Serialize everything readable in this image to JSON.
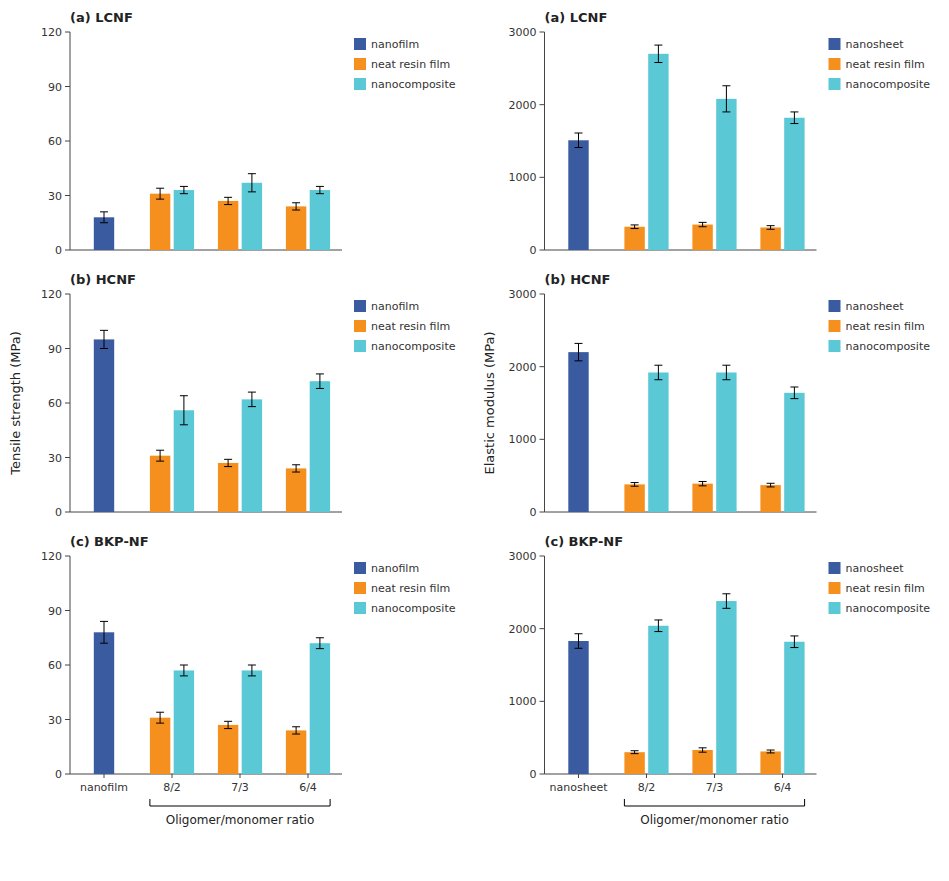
{
  "chart_data": [
    {
      "type": "bar",
      "title": "(a) LCNF",
      "categories": [
        "nanofilm",
        "8/2",
        "7/3",
        "6/4"
      ],
      "series": [
        {
          "name": "nanofilm",
          "color": "#3A5BA0",
          "values": [
            18,
            null,
            null,
            null
          ],
          "errors": [
            3,
            null,
            null,
            null
          ]
        },
        {
          "name": "neat resin film",
          "color": "#F5901E",
          "values": [
            null,
            31,
            27,
            24
          ],
          "errors": [
            null,
            3,
            2,
            2
          ]
        },
        {
          "name": "nanocomposite",
          "color": "#5BC8D6",
          "values": [
            null,
            33,
            37,
            33
          ],
          "errors": [
            null,
            2,
            5,
            2
          ]
        }
      ],
      "ylim": [
        0,
        120
      ],
      "yticks": [
        0,
        30,
        60,
        90,
        120
      ],
      "grid": false,
      "legend": "right",
      "tick_labels": "y"
    },
    {
      "type": "bar",
      "title": "(b) HCNF",
      "ylabel": "Tensile strength (MPa)",
      "categories": [
        "nanofilm",
        "8/2",
        "7/3",
        "6/4"
      ],
      "series": [
        {
          "name": "nanofilm",
          "color": "#3A5BA0",
          "values": [
            95,
            null,
            null,
            null
          ],
          "errors": [
            5,
            null,
            null,
            null
          ]
        },
        {
          "name": "neat resin film",
          "color": "#F5901E",
          "values": [
            null,
            31,
            27,
            24
          ],
          "errors": [
            null,
            3,
            2,
            2
          ]
        },
        {
          "name": "nanocomposite",
          "color": "#5BC8D6",
          "values": [
            null,
            56,
            62,
            72
          ],
          "errors": [
            null,
            8,
            4,
            4
          ]
        }
      ],
      "ylim": [
        0,
        120
      ],
      "yticks": [
        0,
        30,
        60,
        90,
        120
      ],
      "grid": false,
      "legend": "right",
      "tick_labels": "y"
    },
    {
      "type": "bar",
      "title": "(c) BKP-NF",
      "xlabel": "Oligomer/monomer ratio",
      "categories": [
        "nanofilm",
        "8/2",
        "7/3",
        "6/4"
      ],
      "series": [
        {
          "name": "nanofilm",
          "color": "#3A5BA0",
          "values": [
            78,
            null,
            null,
            null
          ],
          "errors": [
            6,
            null,
            null,
            null
          ]
        },
        {
          "name": "neat resin film",
          "color": "#F5901E",
          "values": [
            null,
            31,
            27,
            24
          ],
          "errors": [
            null,
            3,
            2,
            2
          ]
        },
        {
          "name": "nanocomposite",
          "color": "#5BC8D6",
          "values": [
            null,
            57,
            57,
            72
          ],
          "errors": [
            null,
            3,
            3,
            3
          ]
        }
      ],
      "ylim": [
        0,
        120
      ],
      "yticks": [
        0,
        30,
        60,
        90,
        120
      ],
      "grid": false,
      "legend": "right",
      "tick_labels": true
    },
    {
      "type": "bar",
      "title": "(a) LCNF",
      "categories": [
        "nanosheet",
        "8/2",
        "7/3",
        "6/4"
      ],
      "series": [
        {
          "name": "nanosheet",
          "color": "#3A5BA0",
          "values": [
            1510,
            null,
            null,
            null
          ],
          "errors": [
            100,
            null,
            null,
            null
          ]
        },
        {
          "name": "neat resin film",
          "color": "#F5901E",
          "values": [
            null,
            320,
            350,
            310
          ],
          "errors": [
            null,
            25,
            30,
            25
          ]
        },
        {
          "name": "nanocomposite",
          "color": "#5BC8D6",
          "values": [
            null,
            2700,
            2080,
            1820
          ],
          "errors": [
            null,
            120,
            180,
            80
          ]
        }
      ],
      "ylim": [
        0,
        3000
      ],
      "yticks": [
        0,
        1000,
        2000,
        3000
      ],
      "grid": false,
      "legend": "right",
      "tick_labels": "y"
    },
    {
      "type": "bar",
      "title": "(b) HCNF",
      "ylabel": "Elastic modulus (MPa)",
      "categories": [
        "nanosheet",
        "8/2",
        "7/3",
        "6/4"
      ],
      "series": [
        {
          "name": "nanosheet",
          "color": "#3A5BA0",
          "values": [
            2200,
            null,
            null,
            null
          ],
          "errors": [
            120,
            null,
            null,
            null
          ]
        },
        {
          "name": "neat resin film",
          "color": "#F5901E",
          "values": [
            null,
            380,
            390,
            370
          ],
          "errors": [
            null,
            25,
            30,
            25
          ]
        },
        {
          "name": "nanocomposite",
          "color": "#5BC8D6",
          "values": [
            null,
            1920,
            1920,
            1640
          ],
          "errors": [
            null,
            100,
            100,
            80
          ]
        }
      ],
      "ylim": [
        0,
        3000
      ],
      "yticks": [
        0,
        1000,
        2000,
        3000
      ],
      "grid": false,
      "legend": "right",
      "tick_labels": "y"
    },
    {
      "type": "bar",
      "title": "(c) BKP-NF",
      "xlabel": "Oligomer/monomer ratio",
      "categories": [
        "nanosheet",
        "8/2",
        "7/3",
        "6/4"
      ],
      "series": [
        {
          "name": "nanosheet",
          "color": "#3A5BA0",
          "values": [
            1830,
            null,
            null,
            null
          ],
          "errors": [
            100,
            null,
            null,
            null
          ]
        },
        {
          "name": "neat resin film",
          "color": "#F5901E",
          "values": [
            null,
            300,
            330,
            310
          ],
          "errors": [
            null,
            20,
            30,
            20
          ]
        },
        {
          "name": "nanocomposite",
          "color": "#5BC8D6",
          "values": [
            null,
            2040,
            2380,
            1820
          ],
          "errors": [
            null,
            80,
            100,
            80
          ]
        }
      ],
      "ylim": [
        0,
        3000
      ],
      "yticks": [
        0,
        1000,
        2000,
        3000
      ],
      "grid": false,
      "legend": "right",
      "tick_labels": true
    }
  ]
}
